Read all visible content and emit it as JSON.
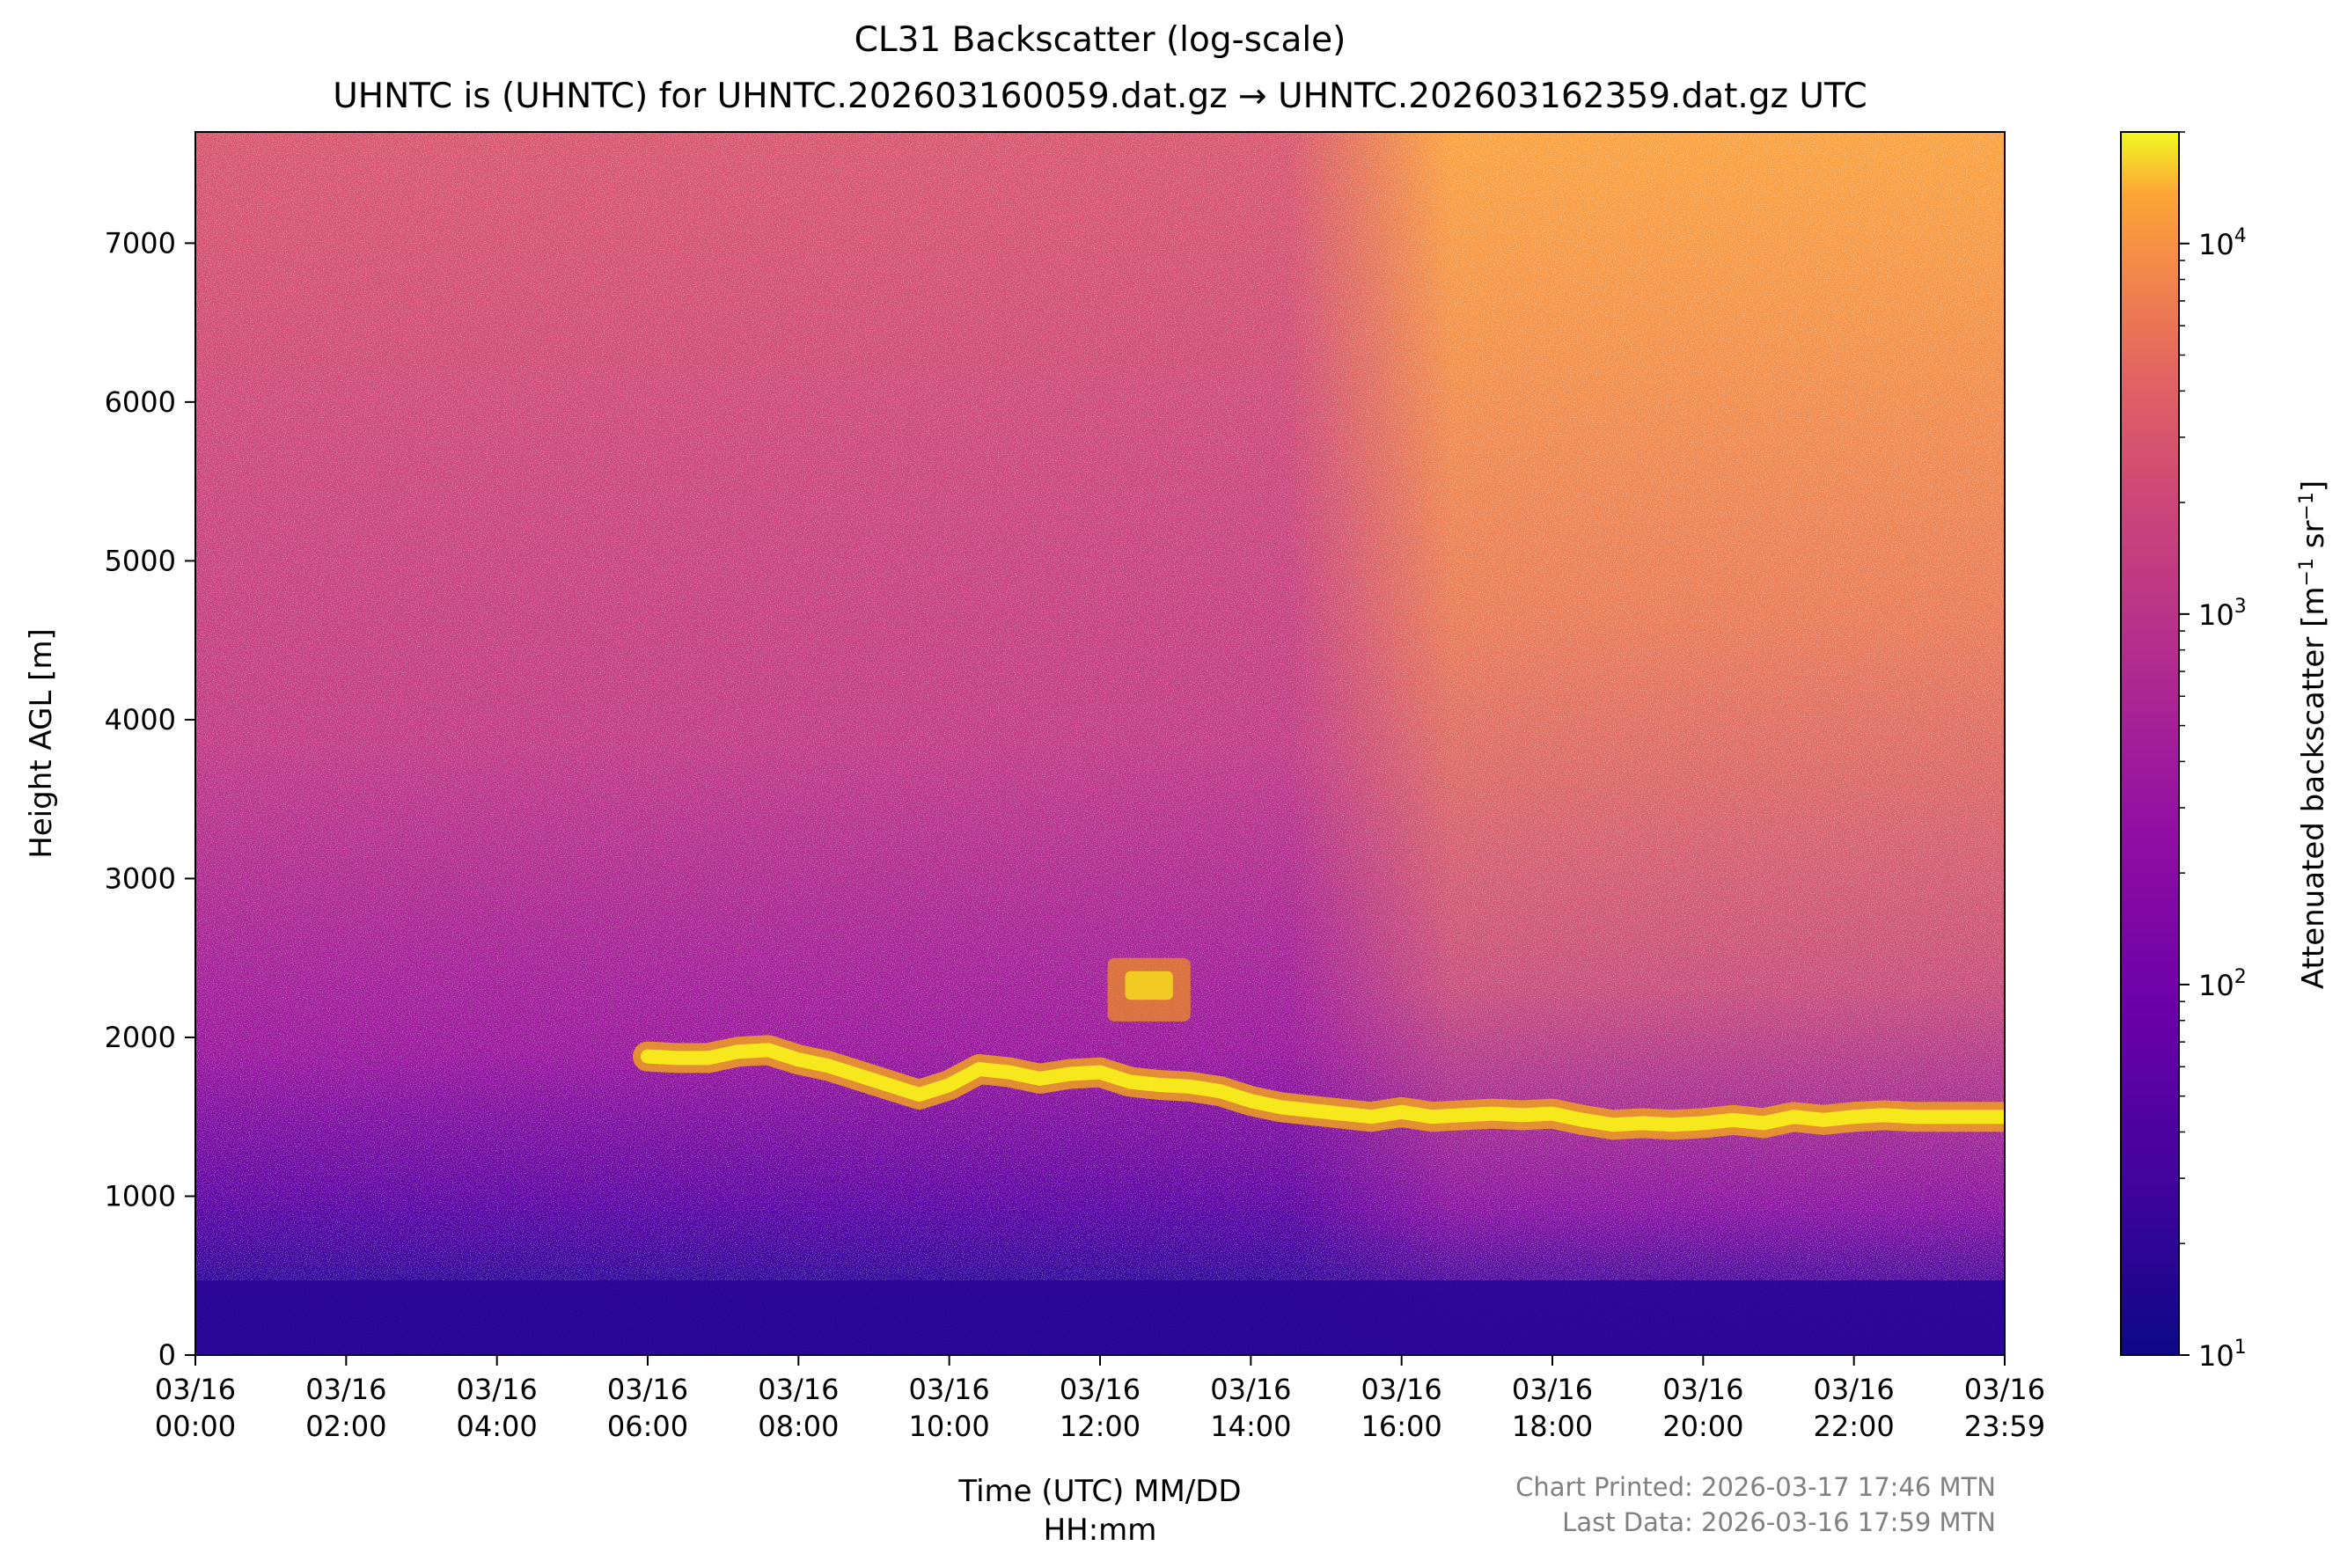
{
  "chart_data": {
    "type": "heatmap",
    "title": "CL31 Backscatter (log-scale)",
    "subtitle": "UHNTC is (UHNTC) for UHNTC.202603160059.dat.gz → UHNTC.202603162359.dat.gz UTC",
    "xlabel_line1": "Time (UTC) MM/DD",
    "xlabel_line2": "HH:mm",
    "ylabel": "Height AGL [m]",
    "x_range_hours": [
      0,
      24
    ],
    "x_ticks": [
      {
        "h": 0,
        "date": "03/16",
        "time": "00:00"
      },
      {
        "h": 2,
        "date": "03/16",
        "time": "02:00"
      },
      {
        "h": 4,
        "date": "03/16",
        "time": "04:00"
      },
      {
        "h": 6,
        "date": "03/16",
        "time": "06:00"
      },
      {
        "h": 8,
        "date": "03/16",
        "time": "08:00"
      },
      {
        "h": 10,
        "date": "03/16",
        "time": "10:00"
      },
      {
        "h": 12,
        "date": "03/16",
        "time": "12:00"
      },
      {
        "h": 14,
        "date": "03/16",
        "time": "14:00"
      },
      {
        "h": 16,
        "date": "03/16",
        "time": "16:00"
      },
      {
        "h": 18,
        "date": "03/16",
        "time": "18:00"
      },
      {
        "h": 20,
        "date": "03/16",
        "time": "20:00"
      },
      {
        "h": 22,
        "date": "03/16",
        "time": "22:00"
      },
      {
        "h": 24,
        "date": "03/16",
        "time": "23:59"
      }
    ],
    "ylim": [
      0,
      7700
    ],
    "y_ticks": [
      0,
      1000,
      2000,
      3000,
      4000,
      5000,
      6000,
      7000
    ],
    "colorbar": {
      "scale": "log",
      "range": [
        10,
        20000
      ],
      "colormap": "plasma",
      "label_main": "Attenuated backscatter [m",
      "label_sup1": "−1",
      "label_mid": " sr",
      "label_sup2": "−1",
      "label_end": "]",
      "ticks": [
        {
          "value": 10,
          "base": "10",
          "exp": "1"
        },
        {
          "value": 100,
          "base": "10",
          "exp": "2"
        },
        {
          "value": 1000,
          "base": "10",
          "exp": "3"
        },
        {
          "value": 10000,
          "base": "10",
          "exp": "4"
        }
      ]
    },
    "features": {
      "cloud_layer": {
        "description_values": "time_h vs height_m of the bright backscatter layer",
        "time_h": [
          6.0,
          6.4,
          6.8,
          7.0,
          7.2,
          7.6,
          8.0,
          8.4,
          8.8,
          9.2,
          9.6,
          10.0,
          10.4,
          10.8,
          11.2,
          11.6,
          12.0,
          12.4,
          12.8,
          13.2,
          13.6,
          14.0,
          14.4,
          14.8,
          15.2,
          15.6,
          16.0,
          16.4,
          16.8,
          17.2,
          17.6,
          18.0,
          18.4,
          18.8,
          19.2,
          19.6,
          20.0,
          20.4,
          20.8,
          21.2,
          21.6,
          22.0,
          22.4,
          22.8,
          23.2,
          23.6,
          24.0
        ],
        "height_m": [
          1880,
          1870,
          1870,
          1890,
          1910,
          1920,
          1860,
          1820,
          1760,
          1700,
          1640,
          1700,
          1800,
          1780,
          1740,
          1770,
          1780,
          1720,
          1700,
          1690,
          1660,
          1600,
          1560,
          1540,
          1520,
          1500,
          1530,
          1500,
          1510,
          1520,
          1510,
          1520,
          1480,
          1450,
          1460,
          1450,
          1460,
          1480,
          1460,
          1500,
          1480,
          1500,
          1510,
          1500,
          1500,
          1500,
          1500
        ]
      },
      "high_cloud_plume": {
        "time_h": [
          12.1,
          13.2
        ],
        "height_m": [
          2100,
          2500
        ]
      }
    }
  },
  "footer": {
    "printed": "Chart Printed: 2026-03-17 17:46 MTN",
    "last_data": "Last Data: 2026-03-16 17:59 MTN"
  }
}
